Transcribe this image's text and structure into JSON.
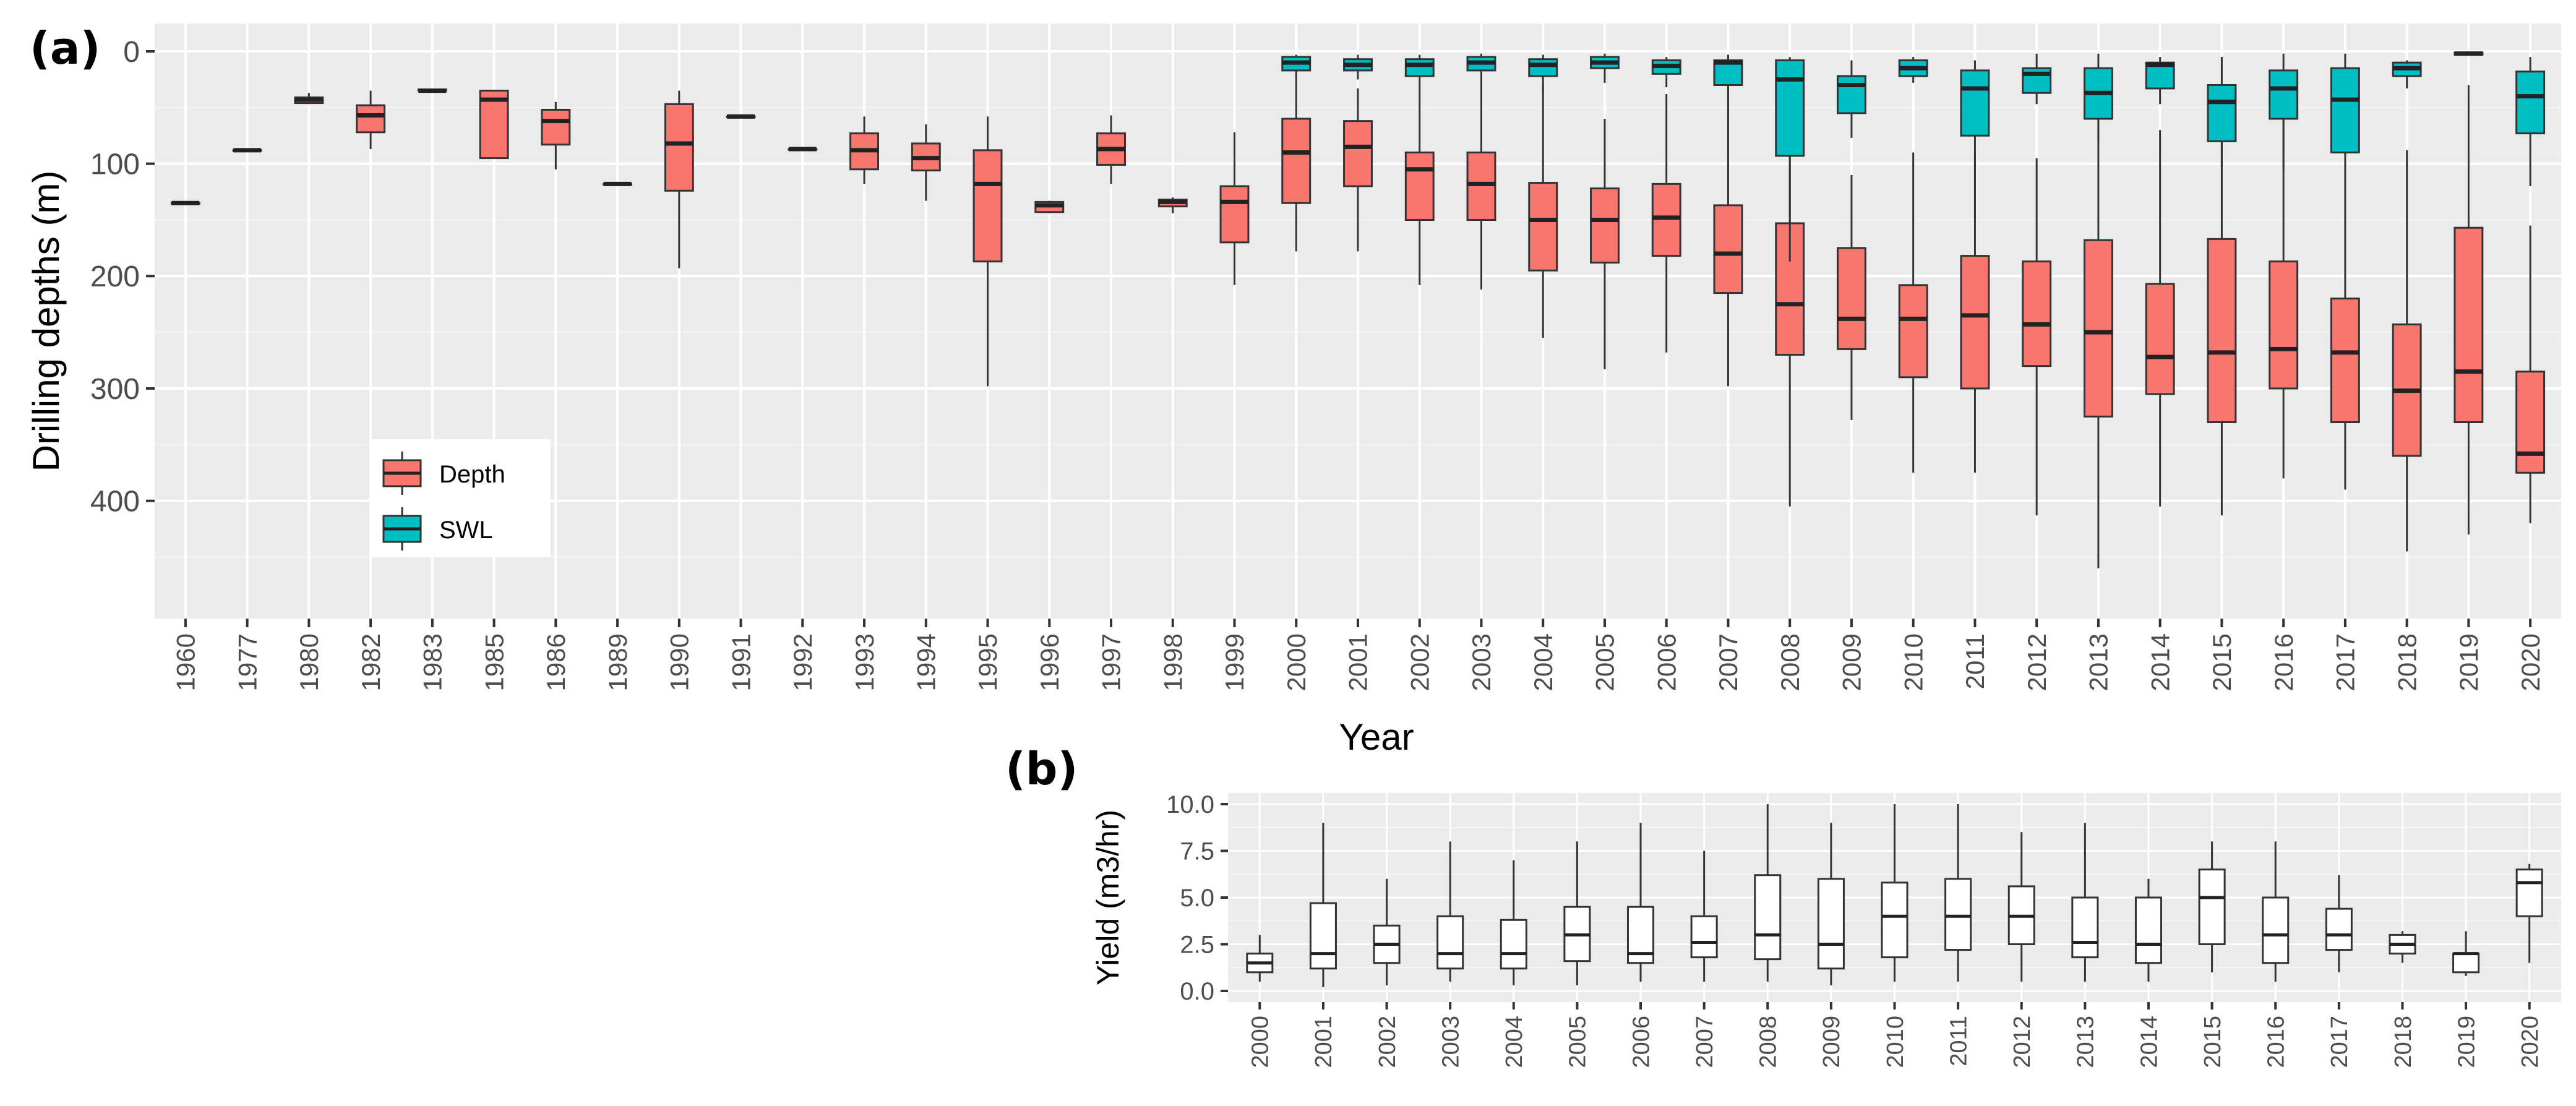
{
  "chart_data": [
    {
      "panel_label": "(a)",
      "type": "boxplot",
      "xlabel": "Year",
      "ylabel": "Drilling depths (m)",
      "y_reversed": true,
      "ylim": [
        0,
        480
      ],
      "yticks": [
        0,
        100,
        200,
        300,
        400
      ],
      "grid": true,
      "legend_position": "inside-bottom-left",
      "categories": [
        "1960",
        "1977",
        "1980",
        "1982",
        "1983",
        "1985",
        "1986",
        "1989",
        "1990",
        "1991",
        "1992",
        "1993",
        "1994",
        "1995",
        "1996",
        "1997",
        "1998",
        "1999",
        "2000",
        "2001",
        "2002",
        "2003",
        "2004",
        "2005",
        "2006",
        "2007",
        "2008",
        "2009",
        "2010",
        "2011",
        "2012",
        "2013",
        "2014",
        "2015",
        "2016",
        "2017",
        "2018",
        "2019",
        "2020"
      ],
      "series": [
        {
          "name": "Depth",
          "color": "#F8766D",
          "boxes": [
            {
              "x": "1960",
              "min": 135,
              "q1": 135,
              "median": 135,
              "q3": 135,
              "max": 135
            },
            {
              "x": "1977",
              "min": 88,
              "q1": 88,
              "median": 88,
              "q3": 88,
              "max": 88
            },
            {
              "x": "1980",
              "min": 37,
              "q1": 41,
              "median": 43,
              "q3": 46,
              "max": 47
            },
            {
              "x": "1982",
              "min": 35,
              "q1": 48,
              "median": 57,
              "q3": 72,
              "max": 87
            },
            {
              "x": "1983",
              "min": 34,
              "q1": 34,
              "median": 35,
              "q3": 35,
              "max": 36
            },
            {
              "x": "1985",
              "min": 35,
              "q1": 35,
              "median": 43,
              "q3": 95,
              "max": 95
            },
            {
              "x": "1986",
              "min": 45,
              "q1": 52,
              "median": 62,
              "q3": 83,
              "max": 105
            },
            {
              "x": "1989",
              "min": 118,
              "q1": 118,
              "median": 118,
              "q3": 118,
              "max": 118
            },
            {
              "x": "1990",
              "min": 35,
              "q1": 47,
              "median": 82,
              "q3": 124,
              "max": 193
            },
            {
              "x": "1991",
              "min": 58,
              "q1": 58,
              "median": 58,
              "q3": 58,
              "max": 58
            },
            {
              "x": "1992",
              "min": 87,
              "q1": 87,
              "median": 87,
              "q3": 87,
              "max": 87
            },
            {
              "x": "1993",
              "min": 58,
              "q1": 73,
              "median": 88,
              "q3": 105,
              "max": 118
            },
            {
              "x": "1994",
              "min": 65,
              "q1": 82,
              "median": 95,
              "q3": 106,
              "max": 133
            },
            {
              "x": "1995",
              "min": 58,
              "q1": 88,
              "median": 118,
              "q3": 187,
              "max": 298
            },
            {
              "x": "1996",
              "min": 133,
              "q1": 134,
              "median": 137,
              "q3": 143,
              "max": 144
            },
            {
              "x": "1997",
              "min": 57,
              "q1": 73,
              "median": 87,
              "q3": 101,
              "max": 118
            },
            {
              "x": "1998",
              "min": 130,
              "q1": 132,
              "median": 134,
              "q3": 138,
              "max": 144
            },
            {
              "x": "1999",
              "min": 72,
              "q1": 120,
              "median": 134,
              "q3": 170,
              "max": 208
            },
            {
              "x": "2000",
              "min": 5,
              "q1": 60,
              "median": 90,
              "q3": 135,
              "max": 178
            },
            {
              "x": "2001",
              "min": 33,
              "q1": 62,
              "median": 85,
              "q3": 120,
              "max": 178
            },
            {
              "x": "2002",
              "min": 30,
              "q1": 90,
              "median": 105,
              "q3": 150,
              "max": 208
            },
            {
              "x": "2003",
              "min": 18,
              "q1": 90,
              "median": 118,
              "q3": 150,
              "max": 212
            },
            {
              "x": "2004",
              "min": 30,
              "q1": 117,
              "median": 150,
              "q3": 195,
              "max": 255
            },
            {
              "x": "2005",
              "min": 60,
              "q1": 122,
              "median": 150,
              "q3": 188,
              "max": 283
            },
            {
              "x": "2006",
              "min": 38,
              "q1": 118,
              "median": 148,
              "q3": 182,
              "max": 268
            },
            {
              "x": "2007",
              "min": 30,
              "q1": 137,
              "median": 180,
              "q3": 215,
              "max": 298
            },
            {
              "x": "2008",
              "min": 60,
              "q1": 153,
              "median": 225,
              "q3": 270,
              "max": 405
            },
            {
              "x": "2009",
              "min": 110,
              "q1": 175,
              "median": 238,
              "q3": 265,
              "max": 328
            },
            {
              "x": "2010",
              "min": 90,
              "q1": 208,
              "median": 238,
              "q3": 290,
              "max": 375
            },
            {
              "x": "2011",
              "min": 90,
              "q1": 182,
              "median": 235,
              "q3": 300,
              "max": 375
            },
            {
              "x": "2012",
              "min": 95,
              "q1": 187,
              "median": 243,
              "q3": 280,
              "max": 413
            },
            {
              "x": "2013",
              "min": 22,
              "q1": 168,
              "median": 250,
              "q3": 325,
              "max": 460
            },
            {
              "x": "2014",
              "min": 70,
              "q1": 207,
              "median": 272,
              "q3": 305,
              "max": 405
            },
            {
              "x": "2015",
              "min": 58,
              "q1": 167,
              "median": 268,
              "q3": 330,
              "max": 413
            },
            {
              "x": "2016",
              "min": 20,
              "q1": 187,
              "median": 265,
              "q3": 300,
              "max": 380
            },
            {
              "x": "2017",
              "min": 58,
              "q1": 220,
              "median": 268,
              "q3": 330,
              "max": 390
            },
            {
              "x": "2018",
              "min": 88,
              "q1": 243,
              "median": 302,
              "q3": 360,
              "max": 445
            },
            {
              "x": "2019",
              "min": 30,
              "q1": 157,
              "median": 285,
              "q3": 330,
              "max": 430
            },
            {
              "x": "2020",
              "min": 155,
              "q1": 285,
              "median": 358,
              "q3": 375,
              "max": 420
            }
          ]
        },
        {
          "name": "SWL",
          "color": "#00BFC4",
          "boxes": [
            {
              "x": "2000",
              "min": 3,
              "q1": 5,
              "median": 10,
              "q3": 17,
              "max": 22
            },
            {
              "x": "2001",
              "min": 3,
              "q1": 7,
              "median": 12,
              "q3": 17,
              "max": 25
            },
            {
              "x": "2002",
              "min": 3,
              "q1": 7,
              "median": 12,
              "q3": 22,
              "max": 30
            },
            {
              "x": "2003",
              "min": 2,
              "q1": 5,
              "median": 10,
              "q3": 17,
              "max": 33
            },
            {
              "x": "2004",
              "min": 3,
              "q1": 7,
              "median": 12,
              "q3": 22,
              "max": 37
            },
            {
              "x": "2005",
              "min": 2,
              "q1": 5,
              "median": 10,
              "q3": 15,
              "max": 28
            },
            {
              "x": "2006",
              "min": 5,
              "q1": 8,
              "median": 13,
              "q3": 20,
              "max": 32
            },
            {
              "x": "2007",
              "min": 3,
              "q1": 8,
              "median": 10,
              "q3": 30,
              "max": 60
            },
            {
              "x": "2008",
              "min": 5,
              "q1": 8,
              "median": 25,
              "q3": 93,
              "max": 187
            },
            {
              "x": "2009",
              "min": 8,
              "q1": 22,
              "median": 30,
              "q3": 55,
              "max": 77
            },
            {
              "x": "2010",
              "min": 5,
              "q1": 8,
              "median": 15,
              "q3": 22,
              "max": 28
            },
            {
              "x": "2011",
              "min": 8,
              "q1": 17,
              "median": 33,
              "q3": 75,
              "max": 148
            },
            {
              "x": "2012",
              "min": 2,
              "q1": 15,
              "median": 20,
              "q3": 37,
              "max": 47
            },
            {
              "x": "2013",
              "min": 2,
              "q1": 15,
              "median": 37,
              "q3": 60,
              "max": 80
            },
            {
              "x": "2014",
              "min": 5,
              "q1": 10,
              "median": 12,
              "q3": 33,
              "max": 47
            },
            {
              "x": "2015",
              "min": 5,
              "q1": 30,
              "median": 45,
              "q3": 80,
              "max": 103
            },
            {
              "x": "2016",
              "min": 2,
              "q1": 17,
              "median": 33,
              "q3": 60,
              "max": 105
            },
            {
              "x": "2017",
              "min": 2,
              "q1": 15,
              "median": 43,
              "q3": 90,
              "max": 93
            },
            {
              "x": "2018",
              "min": 8,
              "q1": 10,
              "median": 15,
              "q3": 22,
              "max": 33
            },
            {
              "x": "2019",
              "min": 1,
              "q1": 1,
              "median": 2,
              "q3": 3,
              "max": 3
            },
            {
              "x": "2020",
              "min": 5,
              "q1": 18,
              "median": 40,
              "q3": 73,
              "max": 120
            }
          ]
        }
      ]
    },
    {
      "panel_label": "(b)",
      "type": "boxplot",
      "xlabel": "",
      "ylabel": "Yield (m3/hr)",
      "ylim": [
        0,
        10
      ],
      "yticks": [
        "0.0",
        "2.5",
        "5.0",
        "7.5",
        "10.0"
      ],
      "grid": true,
      "categories": [
        "2000",
        "2001",
        "2002",
        "2003",
        "2004",
        "2005",
        "2006",
        "2007",
        "2008",
        "2009",
        "2010",
        "2011",
        "2012",
        "2013",
        "2014",
        "2015",
        "2016",
        "2017",
        "2018",
        "2019",
        "2020"
      ],
      "series": [
        {
          "name": "",
          "color": "#FFFFFF",
          "boxes": [
            {
              "x": "2000",
              "min": 0.5,
              "q1": 1.0,
              "median": 1.5,
              "q3": 2.0,
              "max": 3.0
            },
            {
              "x": "2001",
              "min": 0.2,
              "q1": 1.2,
              "median": 2.0,
              "q3": 4.7,
              "max": 9.0
            },
            {
              "x": "2002",
              "min": 0.3,
              "q1": 1.5,
              "median": 2.5,
              "q3": 3.5,
              "max": 6.0
            },
            {
              "x": "2003",
              "min": 0.5,
              "q1": 1.2,
              "median": 2.0,
              "q3": 4.0,
              "max": 8.0
            },
            {
              "x": "2004",
              "min": 0.3,
              "q1": 1.2,
              "median": 2.0,
              "q3": 3.8,
              "max": 7.0
            },
            {
              "x": "2005",
              "min": 0.3,
              "q1": 1.6,
              "median": 3.0,
              "q3": 4.5,
              "max": 8.0
            },
            {
              "x": "2006",
              "min": 0.5,
              "q1": 1.5,
              "median": 2.0,
              "q3": 4.5,
              "max": 9.0
            },
            {
              "x": "2007",
              "min": 0.5,
              "q1": 1.8,
              "median": 2.6,
              "q3": 4.0,
              "max": 7.5
            },
            {
              "x": "2008",
              "min": 0.5,
              "q1": 1.7,
              "median": 3.0,
              "q3": 6.2,
              "max": 10.0
            },
            {
              "x": "2009",
              "min": 0.3,
              "q1": 1.2,
              "median": 2.5,
              "q3": 6.0,
              "max": 9.0
            },
            {
              "x": "2010",
              "min": 0.5,
              "q1": 1.8,
              "median": 4.0,
              "q3": 5.8,
              "max": 10.0
            },
            {
              "x": "2011",
              "min": 0.5,
              "q1": 2.2,
              "median": 4.0,
              "q3": 6.0,
              "max": 10.0
            },
            {
              "x": "2012",
              "min": 0.5,
              "q1": 2.5,
              "median": 4.0,
              "q3": 5.6,
              "max": 8.5
            },
            {
              "x": "2013",
              "min": 0.5,
              "q1": 1.8,
              "median": 2.6,
              "q3": 5.0,
              "max": 9.0
            },
            {
              "x": "2014",
              "min": 0.5,
              "q1": 1.5,
              "median": 2.5,
              "q3": 5.0,
              "max": 6.0
            },
            {
              "x": "2015",
              "min": 1.0,
              "q1": 2.5,
              "median": 5.0,
              "q3": 6.5,
              "max": 8.0
            },
            {
              "x": "2016",
              "min": 0.5,
              "q1": 1.5,
              "median": 3.0,
              "q3": 5.0,
              "max": 8.0
            },
            {
              "x": "2017",
              "min": 1.0,
              "q1": 2.2,
              "median": 3.0,
              "q3": 4.4,
              "max": 6.2
            },
            {
              "x": "2018",
              "min": 1.5,
              "q1": 2.0,
              "median": 2.5,
              "q3": 3.0,
              "max": 3.2
            },
            {
              "x": "2019",
              "min": 0.8,
              "q1": 1.0,
              "median": 2.0,
              "q3": 2.0,
              "max": 3.2
            },
            {
              "x": "2020",
              "min": 1.5,
              "q1": 4.0,
              "median": 5.8,
              "q3": 6.5,
              "max": 6.8
            }
          ]
        }
      ]
    }
  ]
}
